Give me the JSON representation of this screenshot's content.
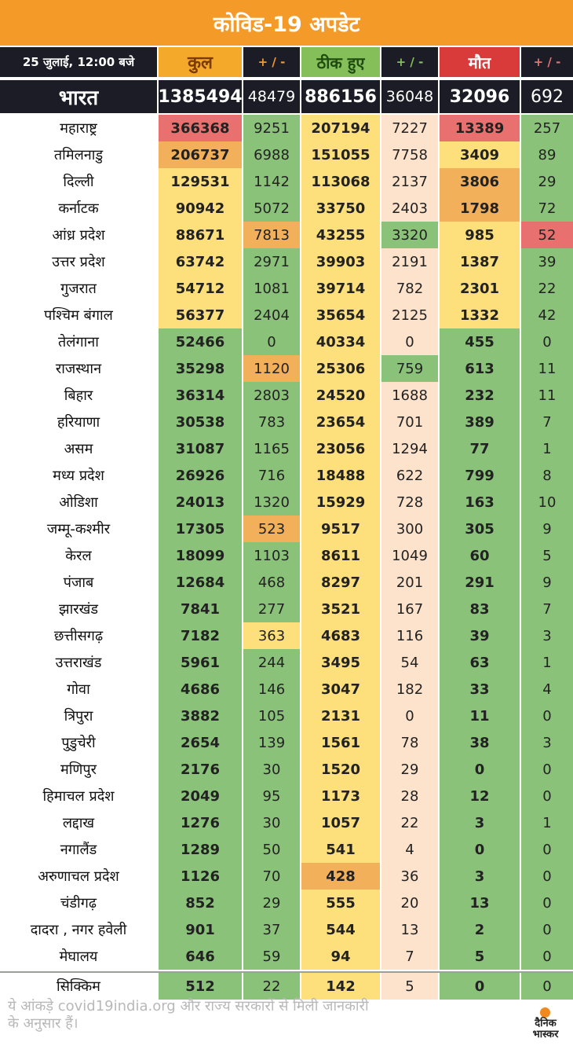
{
  "title": "कोविड-19 अपडेट",
  "header": {
    "date": "25 जुलाई, 12:00 बजे",
    "total": "कुल",
    "delta": "+ / -",
    "recovered": "ठीक हुए",
    "deaths": "मौत"
  },
  "national": {
    "name": "भारत",
    "total": "1385494",
    "total_delta": "48479",
    "recovered": "886156",
    "recovered_delta": "36048",
    "deaths": "32096",
    "deaths_delta": "692"
  },
  "states": [
    {
      "name": "महाराष्ट्र",
      "total": "366368",
      "total_delta": "9251",
      "recovered": "207194",
      "recovered_delta": "7227",
      "deaths": "13389",
      "deaths_delta": "257"
    },
    {
      "name": "तमिलनाडु",
      "total": "206737",
      "total_delta": "6988",
      "recovered": "151055",
      "recovered_delta": "7758",
      "deaths": "3409",
      "deaths_delta": "89"
    },
    {
      "name": "दिल्ली",
      "total": "129531",
      "total_delta": "1142",
      "recovered": "113068",
      "recovered_delta": "2137",
      "deaths": "3806",
      "deaths_delta": "29"
    },
    {
      "name": "कर्नाटक",
      "total": "90942",
      "total_delta": "5072",
      "recovered": "33750",
      "recovered_delta": "2403",
      "deaths": "1798",
      "deaths_delta": "72"
    },
    {
      "name": "आंध्र प्रदेश",
      "total": "88671",
      "total_delta": "7813",
      "recovered": "43255",
      "recovered_delta": "3320",
      "deaths": "985",
      "deaths_delta": "52"
    },
    {
      "name": "उत्तर प्रदेश",
      "total": "63742",
      "total_delta": "2971",
      "recovered": "39903",
      "recovered_delta": "2191",
      "deaths": "1387",
      "deaths_delta": "39"
    },
    {
      "name": "गुजरात",
      "total": "54712",
      "total_delta": "1081",
      "recovered": "39714",
      "recovered_delta": "782",
      "deaths": "2301",
      "deaths_delta": "22"
    },
    {
      "name": "पश्चिम बंगाल",
      "total": "56377",
      "total_delta": "2404",
      "recovered": "35654",
      "recovered_delta": "2125",
      "deaths": "1332",
      "deaths_delta": "42"
    },
    {
      "name": "तेलंगाना",
      "total": "52466",
      "total_delta": "0",
      "recovered": "40334",
      "recovered_delta": "0",
      "deaths": "455",
      "deaths_delta": "0"
    },
    {
      "name": "राजस्थान",
      "total": "35298",
      "total_delta": "1120",
      "recovered": "25306",
      "recovered_delta": "759",
      "deaths": "613",
      "deaths_delta": "11"
    },
    {
      "name": "बिहार",
      "total": "36314",
      "total_delta": "2803",
      "recovered": "24520",
      "recovered_delta": "1688",
      "deaths": "232",
      "deaths_delta": "11"
    },
    {
      "name": "हरियाणा",
      "total": "30538",
      "total_delta": "783",
      "recovered": "23654",
      "recovered_delta": "701",
      "deaths": "389",
      "deaths_delta": "7"
    },
    {
      "name": "असम",
      "total": "31087",
      "total_delta": "1165",
      "recovered": "23056",
      "recovered_delta": "1294",
      "deaths": "77",
      "deaths_delta": "1"
    },
    {
      "name": "मध्य प्रदेश",
      "total": "26926",
      "total_delta": "716",
      "recovered": "18488",
      "recovered_delta": "622",
      "deaths": "799",
      "deaths_delta": "8"
    },
    {
      "name": "ओडिशा",
      "total": "24013",
      "total_delta": "1320",
      "recovered": "15929",
      "recovered_delta": "728",
      "deaths": "163",
      "deaths_delta": "10"
    },
    {
      "name": "जम्मू-कश्मीर",
      "total": "17305",
      "total_delta": "523",
      "recovered": "9517",
      "recovered_delta": "300",
      "deaths": "305",
      "deaths_delta": "9"
    },
    {
      "name": "केरल",
      "total": "18099",
      "total_delta": "1103",
      "recovered": "8611",
      "recovered_delta": "1049",
      "deaths": "60",
      "deaths_delta": "5"
    },
    {
      "name": "पंजाब",
      "total": "12684",
      "total_delta": "468",
      "recovered": "8297",
      "recovered_delta": "201",
      "deaths": "291",
      "deaths_delta": "9"
    },
    {
      "name": "झारखंड",
      "total": "7841",
      "total_delta": "277",
      "recovered": "3521",
      "recovered_delta": "167",
      "deaths": "83",
      "deaths_delta": "7"
    },
    {
      "name": "छत्तीसगढ़",
      "total": "7182",
      "total_delta": "363",
      "recovered": "4683",
      "recovered_delta": "116",
      "deaths": "39",
      "deaths_delta": "3"
    },
    {
      "name": "उत्तराखंड",
      "total": "5961",
      "total_delta": "244",
      "recovered": "3495",
      "recovered_delta": "54",
      "deaths": "63",
      "deaths_delta": "1"
    },
    {
      "name": "गोवा",
      "total": "4686",
      "total_delta": "146",
      "recovered": "3047",
      "recovered_delta": "182",
      "deaths": "33",
      "deaths_delta": "4"
    },
    {
      "name": "त्रिपुरा",
      "total": "3882",
      "total_delta": "105",
      "recovered": "2131",
      "recovered_delta": "0",
      "deaths": "11",
      "deaths_delta": "0"
    },
    {
      "name": "पुडुचेरी",
      "total": "2654",
      "total_delta": "139",
      "recovered": "1561",
      "recovered_delta": "78",
      "deaths": "38",
      "deaths_delta": "3"
    },
    {
      "name": "मणिपुर",
      "total": "2176",
      "total_delta": "30",
      "recovered": "1520",
      "recovered_delta": "29",
      "deaths": "0",
      "deaths_delta": "0"
    },
    {
      "name": "हिमाचल प्रदेश",
      "total": "2049",
      "total_delta": "95",
      "recovered": "1173",
      "recovered_delta": "28",
      "deaths": "12",
      "deaths_delta": "0"
    },
    {
      "name": "लद्दाख",
      "total": "1276",
      "total_delta": "30",
      "recovered": "1057",
      "recovered_delta": "22",
      "deaths": "3",
      "deaths_delta": "1"
    },
    {
      "name": "नगालैंड",
      "total": "1289",
      "total_delta": "50",
      "recovered": "541",
      "recovered_delta": "4",
      "deaths": "0",
      "deaths_delta": "0"
    },
    {
      "name": "अरुणाचल प्रदेश",
      "total": "1126",
      "total_delta": "70",
      "recovered": "428",
      "recovered_delta": "36",
      "deaths": "3",
      "deaths_delta": "0"
    },
    {
      "name": "चंडीगढ़",
      "total": "852",
      "total_delta": "29",
      "recovered": "555",
      "recovered_delta": "20",
      "deaths": "13",
      "deaths_delta": "0"
    },
    {
      "name": "दादरा , नगर हवेली",
      "total": "901",
      "total_delta": "37",
      "recovered": "544",
      "recovered_delta": "13",
      "deaths": "2",
      "deaths_delta": "0"
    },
    {
      "name": "मेघालय",
      "total": "646",
      "total_delta": "59",
      "recovered": "94",
      "recovered_delta": "7",
      "deaths": "5",
      "deaths_delta": "0"
    },
    {
      "name": "सिक्किम",
      "total": "512",
      "total_delta": "22",
      "recovered": "142",
      "recovered_delta": "5",
      "deaths": "0",
      "deaths_delta": "0"
    }
  ],
  "footer": {
    "note": "ये आंकड़े covid19india.org और राज्य सरकारों से मिली जानकारी के अनुसार हैं।",
    "logo": "दैनिक भास्कर"
  },
  "colors": {
    "title_bg": "#f49a28",
    "header_dark": "#1c1c26",
    "header_total_bg": "#f4a92a",
    "header_recovered_bg": "#84bf5a",
    "header_deaths_bg": "#d93a3a",
    "delta_header_text": "#f49a28",
    "green": "#8bc27a",
    "yellow": "#fde07b",
    "orange": "#f3b05a",
    "red": "#e8716f",
    "peach": "#fde3cc"
  }
}
